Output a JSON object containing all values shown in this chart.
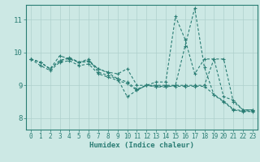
{
  "xlabel": "Humidex (Indice chaleur)",
  "xlim": [
    -0.5,
    23.5
  ],
  "ylim": [
    7.65,
    11.45
  ],
  "xticks": [
    0,
    1,
    2,
    3,
    4,
    5,
    6,
    7,
    8,
    9,
    10,
    11,
    12,
    13,
    14,
    15,
    16,
    17,
    18,
    19,
    20,
    21,
    22,
    23
  ],
  "yticks": [
    8,
    9,
    10,
    11
  ],
  "bg_color": "#cce8e4",
  "line_color": "#2a7d74",
  "grid_color": "#aed0cc",
  "series": [
    [
      9.8,
      9.7,
      9.5,
      9.9,
      9.8,
      9.7,
      9.8,
      9.4,
      9.3,
      9.2,
      8.65,
      8.85,
      9.0,
      9.1,
      9.1,
      11.1,
      10.4,
      9.35,
      9.8,
      9.8,
      8.65,
      8.55,
      8.25,
      8.25
    ],
    [
      9.8,
      9.7,
      9.5,
      9.75,
      9.85,
      9.7,
      9.75,
      9.5,
      9.4,
      9.35,
      9.5,
      9.0,
      9.0,
      9.0,
      9.0,
      9.0,
      9.0,
      9.0,
      9.0,
      9.8,
      9.8,
      8.5,
      8.25,
      8.25
    ],
    [
      9.8,
      9.6,
      9.45,
      9.7,
      9.75,
      9.6,
      9.65,
      9.35,
      9.25,
      9.15,
      9.05,
      8.85,
      9.0,
      8.95,
      8.95,
      9.0,
      10.2,
      11.35,
      9.55,
      8.7,
      8.5,
      8.25,
      8.2,
      8.2
    ],
    [
      9.8,
      9.7,
      9.5,
      9.75,
      9.82,
      9.7,
      9.72,
      9.5,
      9.38,
      9.2,
      9.1,
      8.88,
      9.0,
      8.97,
      8.97,
      8.97,
      8.97,
      8.97,
      8.97,
      8.72,
      8.52,
      8.27,
      8.22,
      8.22
    ]
  ]
}
